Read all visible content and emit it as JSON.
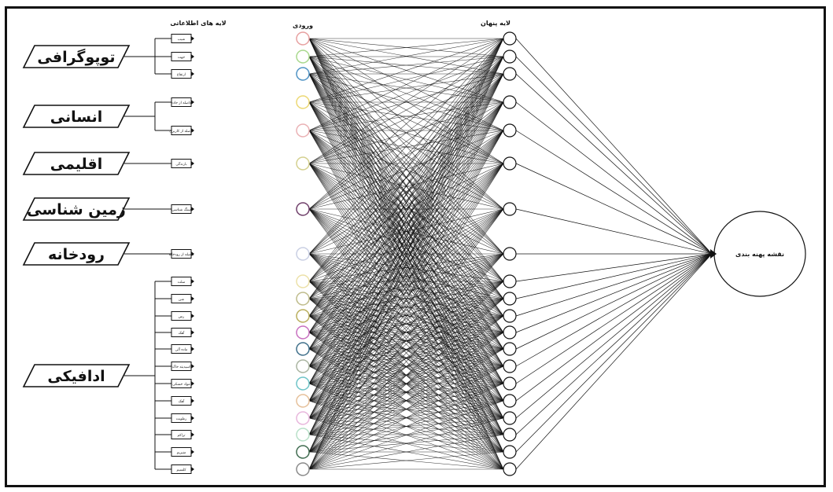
{
  "titles": {
    "info_layers": "لایه های اطلاعاتی",
    "inputs": "ورودی",
    "hidden": "لایه پنهان"
  },
  "output_label": "نقشه پهنه بندی",
  "groups": [
    {
      "name": "توپوگرافی",
      "layers": [
        "شیب",
        "جهت",
        "ارتفاع"
      ]
    },
    {
      "name": "انسانی",
      "layers": [
        "فاصله از جاده",
        "فاصله از کاربری"
      ]
    },
    {
      "name": "اقلیمی",
      "layers": [
        "بارندگی"
      ]
    },
    {
      "name": "زمین شناسی",
      "layers": [
        "سنگ شناسی"
      ]
    },
    {
      "name": "رودخانه",
      "layers": [
        "فاصله از رودخانه"
      ]
    },
    {
      "name": "ادافیکی",
      "layers": [
        "سلت",
        "شن",
        "رس",
        "آهک",
        "ماده آلی",
        "اسیدیته خاک",
        "مواد خشکی",
        "آهک",
        "رطوبت",
        "تراکم",
        "منیزیم",
        "کلسیم"
      ]
    }
  ],
  "input_colors": [
    "#e7a0a0",
    "#a8d88c",
    "#4f92c4",
    "#ecd873",
    "#eab1b4",
    "#d4d08f",
    "#6f3f6a",
    "#c9cfe3",
    "#ece1a8",
    "#bfbc8c",
    "#b9ae5c",
    "#c870c0",
    "#3f6f8a",
    "#a9b4a0",
    "#6ec4c8",
    "#e6c09a",
    "#e8b6dc",
    "#b8e0c8",
    "#3f6b4f",
    "#8a8a8a"
  ],
  "line_color": "#111111"
}
